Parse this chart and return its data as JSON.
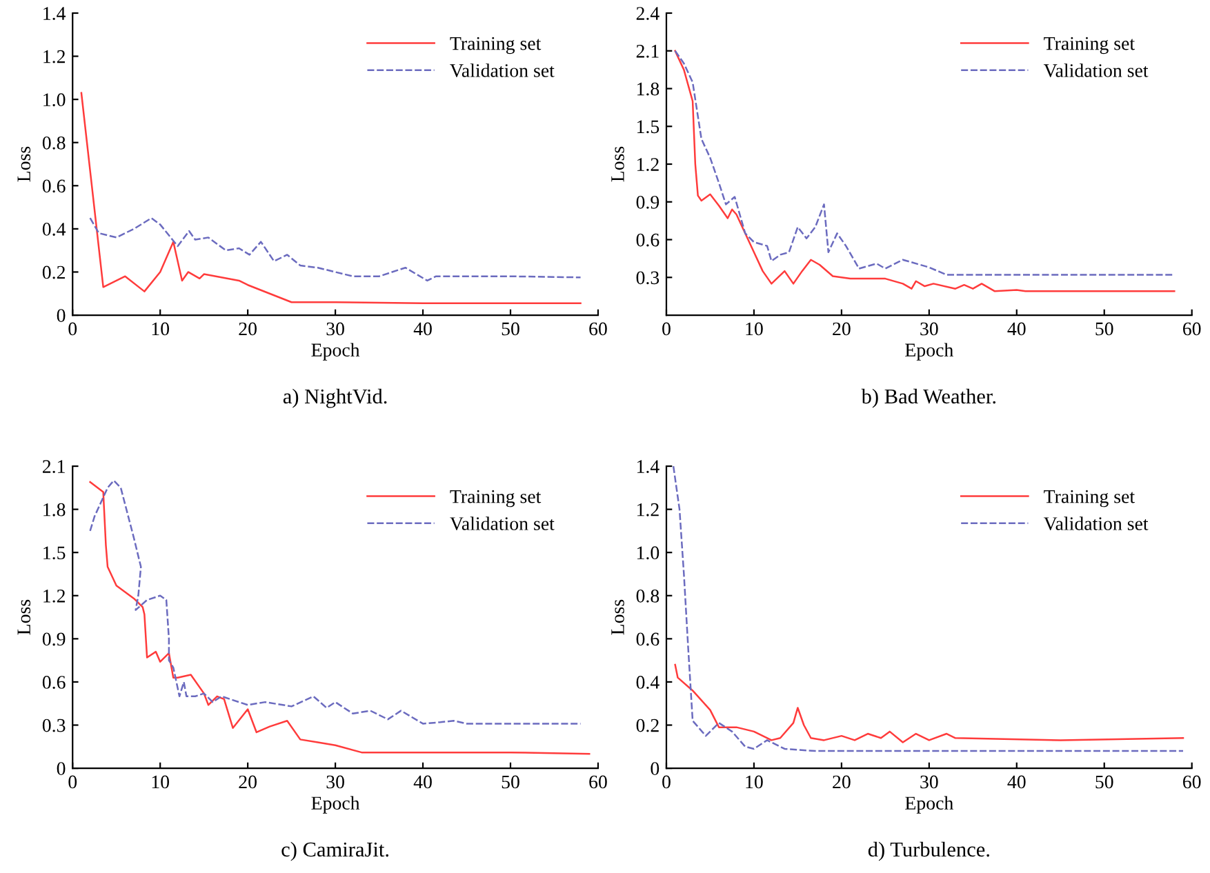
{
  "chart_data": [
    {
      "type": "line",
      "title": "a) NightVid.",
      "xlabel": "Epoch",
      "ylabel": "Loss",
      "xlim": [
        0,
        60
      ],
      "ylim": [
        0,
        1.4
      ],
      "xticks": [
        0,
        10,
        20,
        30,
        40,
        50,
        60
      ],
      "yticks": [
        0,
        0.2,
        0.4,
        0.6,
        0.8,
        {
          "value": 1,
          "label": "1.0"
        },
        1.2,
        1.4
      ],
      "legend": "top right",
      "grid": false,
      "series": [
        {
          "name": "Training set",
          "color": "#ff3b3b",
          "line_style": "solid",
          "x": [
            1,
            3.5,
            6,
            8.2,
            10,
            11.5,
            12.5,
            13.2,
            14.5,
            15,
            19,
            20,
            25,
            30,
            40,
            58
          ],
          "values": [
            1.03,
            0.13,
            0.18,
            0.11,
            0.2,
            0.34,
            0.16,
            0.2,
            0.17,
            0.19,
            0.16,
            0.14,
            0.06,
            0.06,
            0.055,
            0.055
          ]
        },
        {
          "name": "Validation set",
          "color": "#6b6bbf",
          "line_style": "dashed",
          "x": [
            2,
            3,
            5,
            7,
            9,
            10,
            12,
            13.3,
            14,
            15.5,
            17.5,
            19,
            20.2,
            21.5,
            23,
            24.5,
            26,
            28,
            32,
            35,
            38,
            40.5,
            41.5,
            50,
            58
          ],
          "values": [
            0.45,
            0.38,
            0.36,
            0.4,
            0.45,
            0.42,
            0.32,
            0.39,
            0.35,
            0.36,
            0.3,
            0.31,
            0.28,
            0.34,
            0.25,
            0.28,
            0.23,
            0.22,
            0.18,
            0.18,
            0.22,
            0.16,
            0.18,
            0.18,
            0.175
          ]
        }
      ]
    },
    {
      "type": "line",
      "title": "b) Bad Weather.",
      "xlabel": "Epoch",
      "ylabel": "Loss",
      "xlim": [
        0,
        60
      ],
      "ylim": [
        0,
        2.4
      ],
      "xticks": [
        0,
        10,
        20,
        30,
        40,
        50,
        60
      ],
      "yticks": [
        0.3,
        0.6,
        0.9,
        1.2,
        1.5,
        1.8,
        2.1,
        2.4
      ],
      "legend": "top right",
      "grid": false,
      "series": [
        {
          "name": "Training set",
          "color": "#ff3b3b",
          "line_style": "solid",
          "x": [
            1,
            2,
            3,
            3.3,
            3.6,
            4,
            5,
            6,
            7,
            7.5,
            8,
            10,
            11,
            12,
            13.5,
            14.5,
            15.5,
            16.5,
            17.5,
            19,
            21,
            25,
            27,
            28,
            28.5,
            29.5,
            30.5,
            33,
            34,
            35,
            36,
            37.5,
            40,
            41,
            58
          ],
          "values": [
            2.1,
            1.95,
            1.7,
            1.2,
            0.95,
            0.91,
            0.96,
            0.87,
            0.77,
            0.84,
            0.8,
            0.5,
            0.35,
            0.25,
            0.35,
            0.25,
            0.35,
            0.44,
            0.4,
            0.31,
            0.29,
            0.29,
            0.25,
            0.21,
            0.27,
            0.23,
            0.25,
            0.21,
            0.24,
            0.21,
            0.25,
            0.19,
            0.2,
            0.19,
            0.19
          ]
        },
        {
          "name": "Validation set",
          "color": "#6b6bbf",
          "line_style": "dashed",
          "x": [
            1,
            2,
            3,
            4,
            5,
            6,
            6.8,
            7.8,
            9,
            10,
            11.5,
            12,
            13,
            14,
            15,
            16,
            17,
            18,
            18.5,
            19.5,
            20.5,
            22,
            24,
            25,
            27,
            30,
            32,
            58
          ],
          "values": [
            2.1,
            2.0,
            1.85,
            1.4,
            1.25,
            1.05,
            0.88,
            0.94,
            0.65,
            0.58,
            0.55,
            0.43,
            0.48,
            0.5,
            0.7,
            0.61,
            0.7,
            0.88,
            0.5,
            0.65,
            0.55,
            0.37,
            0.41,
            0.37,
            0.44,
            0.38,
            0.32,
            0.32
          ]
        }
      ]
    },
    {
      "type": "line",
      "title": "c) CamiraJit.",
      "xlabel": "Epoch",
      "ylabel": "Loss",
      "xlim": [
        0,
        60
      ],
      "ylim": [
        0,
        2.1
      ],
      "xticks": [
        0,
        10,
        20,
        30,
        40,
        50,
        60
      ],
      "yticks": [
        0,
        0.3,
        0.6,
        0.9,
        1.2,
        1.5,
        1.8,
        2.1
      ],
      "legend": "top right",
      "grid": false,
      "series": [
        {
          "name": "Training set",
          "color": "#ff3b3b",
          "line_style": "solid",
          "x": [
            2,
            3.5,
            3.8,
            4,
            5,
            7,
            8,
            8.2,
            8.5,
            9.5,
            10,
            11,
            11.5,
            12,
            13.5,
            15,
            15.5,
            16.5,
            17.3,
            18.3,
            20,
            21,
            22.5,
            24.5,
            26,
            28,
            30,
            33,
            40,
            50,
            59
          ],
          "values": [
            1.99,
            1.92,
            1.55,
            1.4,
            1.27,
            1.18,
            1.12,
            1.07,
            0.77,
            0.81,
            0.74,
            0.8,
            0.63,
            0.63,
            0.65,
            0.52,
            0.44,
            0.5,
            0.48,
            0.28,
            0.41,
            0.25,
            0.29,
            0.33,
            0.2,
            0.18,
            0.16,
            0.11,
            0.11,
            0.11,
            0.1
          ]
        },
        {
          "name": "Validation set",
          "color": "#6b6bbf",
          "line_style": "dashed",
          "x": [
            2,
            2.5,
            4,
            4.7,
            5.5,
            7,
            7.8,
            7.5,
            7.2,
            8.5,
            10,
            10.7,
            11,
            11,
            11.5,
            12.2,
            12.7,
            13,
            14,
            15,
            16,
            17,
            20,
            22,
            25,
            27.5,
            29,
            30,
            32,
            34,
            36,
            37.5,
            40,
            42,
            43.5,
            45,
            58
          ],
          "values": [
            1.65,
            1.75,
            1.95,
            2.0,
            1.95,
            1.6,
            1.4,
            1.2,
            1.1,
            1.17,
            1.2,
            1.17,
            0.9,
            0.75,
            0.7,
            0.5,
            0.6,
            0.5,
            0.5,
            0.52,
            0.46,
            0.5,
            0.44,
            0.46,
            0.43,
            0.5,
            0.42,
            0.46,
            0.38,
            0.4,
            0.34,
            0.4,
            0.31,
            0.32,
            0.33,
            0.31,
            0.31
          ]
        }
      ]
    },
    {
      "type": "line",
      "title": "d) Turbulence.",
      "xlabel": "Epoch",
      "ylabel": "Loss",
      "xlim": [
        0,
        60
      ],
      "ylim": [
        0,
        1.4
      ],
      "xticks": [
        0,
        10,
        20,
        30,
        40,
        50,
        60
      ],
      "yticks": [
        0,
        0.2,
        0.4,
        0.6,
        0.8,
        {
          "value": 1,
          "label": "1.0"
        },
        1.2,
        1.4
      ],
      "legend": "top right",
      "grid": false,
      "series": [
        {
          "name": "Training set",
          "color": "#ff3b3b",
          "line_style": "solid",
          "x": [
            1,
            1.3,
            3,
            5,
            6,
            8,
            10,
            12,
            13,
            14.5,
            15,
            15.7,
            16.5,
            18,
            20,
            21.5,
            23,
            24.5,
            25.5,
            27,
            28.5,
            30,
            32,
            33,
            45,
            59
          ],
          "values": [
            0.48,
            0.42,
            0.36,
            0.27,
            0.19,
            0.19,
            0.17,
            0.13,
            0.14,
            0.21,
            0.28,
            0.2,
            0.14,
            0.13,
            0.15,
            0.13,
            0.16,
            0.14,
            0.17,
            0.12,
            0.16,
            0.13,
            0.16,
            0.14,
            0.13,
            0.14
          ]
        },
        {
          "name": "Validation set",
          "color": "#6b6bbf",
          "line_style": "dashed",
          "x": [
            0.8,
            1.5,
            2,
            2.5,
            3,
            4.5,
            6,
            7.5,
            9,
            10,
            11.5,
            12.5,
            13.5,
            17,
            30,
            59
          ],
          "values": [
            1.4,
            1.2,
            0.9,
            0.55,
            0.22,
            0.15,
            0.21,
            0.17,
            0.1,
            0.09,
            0.13,
            0.11,
            0.09,
            0.08,
            0.08,
            0.08
          ]
        }
      ]
    }
  ]
}
